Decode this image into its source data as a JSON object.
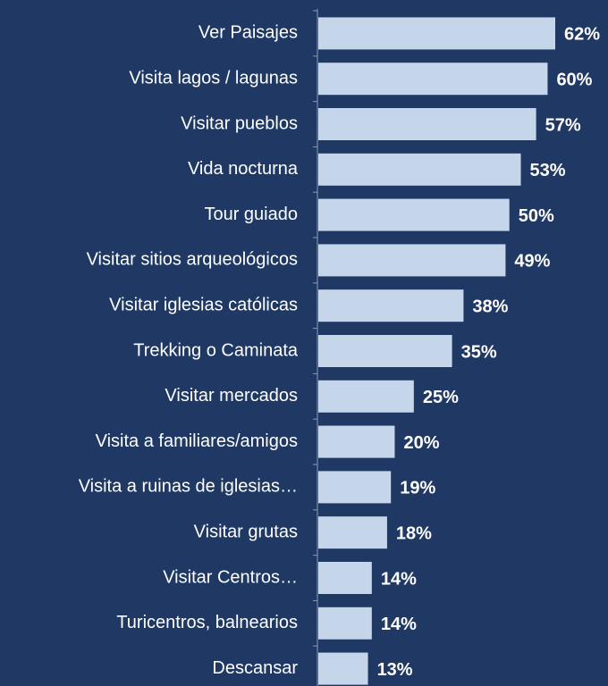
{
  "chart_data": {
    "type": "bar",
    "orientation": "horizontal",
    "categories": [
      "Ver Paisajes",
      "Visita lagos / lagunas",
      "Visitar pueblos",
      "Vida nocturna",
      "Tour guiado",
      "Visitar sitios arqueológicos",
      "Visitar iglesias católicas",
      "Trekking o Caminata",
      "Visitar mercados",
      "Visita a familiares/amigos",
      "Visita a ruinas de iglesias…",
      "Visitar grutas",
      "Visitar Centros…",
      "Turicentros, balnearios",
      "Descansar"
    ],
    "values": [
      62,
      60,
      57,
      53,
      50,
      49,
      38,
      35,
      25,
      20,
      19,
      18,
      14,
      14,
      13
    ],
    "value_labels": [
      "62%",
      "60%",
      "57%",
      "53%",
      "50%",
      "49%",
      "38%",
      "35%",
      "25%",
      "20%",
      "19%",
      "18%",
      "14%",
      "14%",
      "13%"
    ],
    "color": "#c5d5ea"
  }
}
